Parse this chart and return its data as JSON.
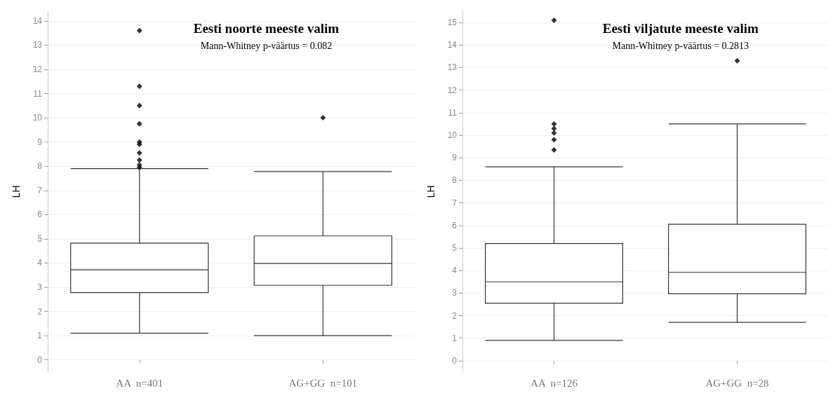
{
  "chart_data": [
    {
      "type": "box",
      "title": "Eesti noorte meeste valim",
      "subtitle": "Mann-Whitney p-väärtus = 0.082",
      "ylabel": "LH",
      "categories": [
        "AA  n=401",
        "AG+GG  n=101"
      ],
      "boxes": [
        {
          "low": 1.1,
          "q1": 2.78,
          "median": 3.72,
          "q3": 4.82,
          "high": 7.9,
          "outliers": [
            13.6,
            11.3,
            10.5,
            9.75,
            9.0,
            8.9,
            8.55,
            8.25,
            8.05,
            7.95
          ]
        },
        {
          "low": 1.0,
          "q1": 3.08,
          "median": 3.98,
          "q3": 5.12,
          "high": 7.78,
          "outliers": [
            10.0
          ]
        }
      ],
      "ylim": [
        -0.5,
        14.4
      ],
      "yticks": [
        0,
        1,
        2,
        3,
        4,
        5,
        6,
        7,
        8,
        9,
        10,
        11,
        12,
        13,
        14
      ],
      "grid": "y",
      "marker": "diamond"
    },
    {
      "type": "box",
      "title": "Eesti viljatute meeste valim",
      "subtitle": "Mann-Whitney p-väärtus = 0.2813",
      "ylabel": "LH",
      "categories": [
        "AA  n=126",
        "AG+GG  n=28"
      ],
      "boxes": [
        {
          "low": 0.9,
          "q1": 2.55,
          "median": 3.5,
          "q3": 5.2,
          "high": 8.6,
          "outliers": [
            15.1,
            10.5,
            10.3,
            10.1,
            9.8,
            9.35
          ]
        },
        {
          "low": 1.7,
          "q1": 2.97,
          "median": 3.92,
          "q3": 6.05,
          "high": 10.5,
          "outliers": [
            13.3
          ]
        }
      ],
      "ylim": [
        -0.5,
        15.5
      ],
      "yticks": [
        0,
        1,
        2,
        3,
        4,
        5,
        6,
        7,
        8,
        9,
        10,
        11,
        12,
        13,
        14,
        15
      ],
      "grid": "y",
      "marker": "diamond"
    }
  ]
}
